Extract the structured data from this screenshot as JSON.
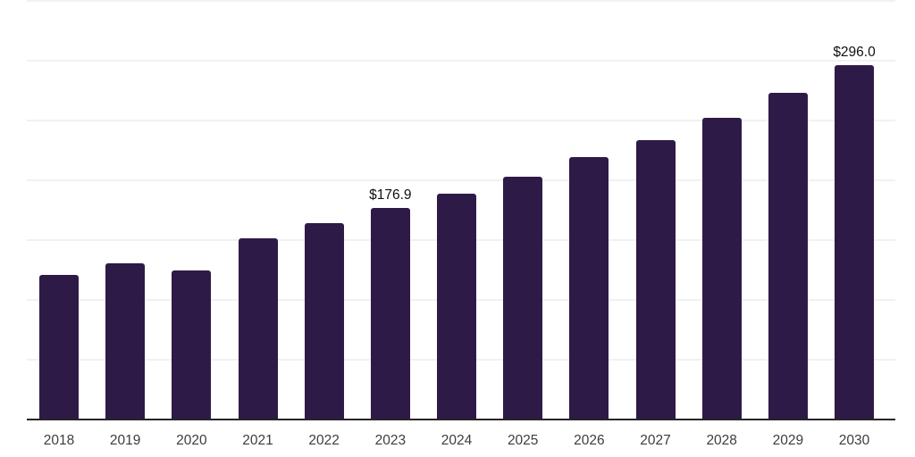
{
  "page": {
    "background": "#ffffff"
  },
  "chart_data": {
    "type": "bar",
    "categories": [
      "2018",
      "2019",
      "2020",
      "2021",
      "2022",
      "2023",
      "2024",
      "2025",
      "2026",
      "2027",
      "2028",
      "2029",
      "2030"
    ],
    "values": [
      120.8,
      130.5,
      124.6,
      151.4,
      164.0,
      176.9,
      189.0,
      203.0,
      219.3,
      233.5,
      252.1,
      273.0,
      296.0
    ],
    "data_labels": [
      {
        "category": "2023",
        "value": 176.9,
        "text": "$176.9"
      },
      {
        "category": "2030",
        "value": 296.0,
        "text": "$296.0"
      }
    ],
    "ylim": [
      0,
      350
    ],
    "grid_step": 50,
    "grid": "on",
    "legend": "none",
    "y_axis_tick_labels_visible": false,
    "bar_color": "#2e1a47",
    "axis_line_color": "#262626",
    "gridline_color": "#f1f1f1",
    "x_label_color": "#3d3d3d",
    "data_label_color": "#111111"
  }
}
